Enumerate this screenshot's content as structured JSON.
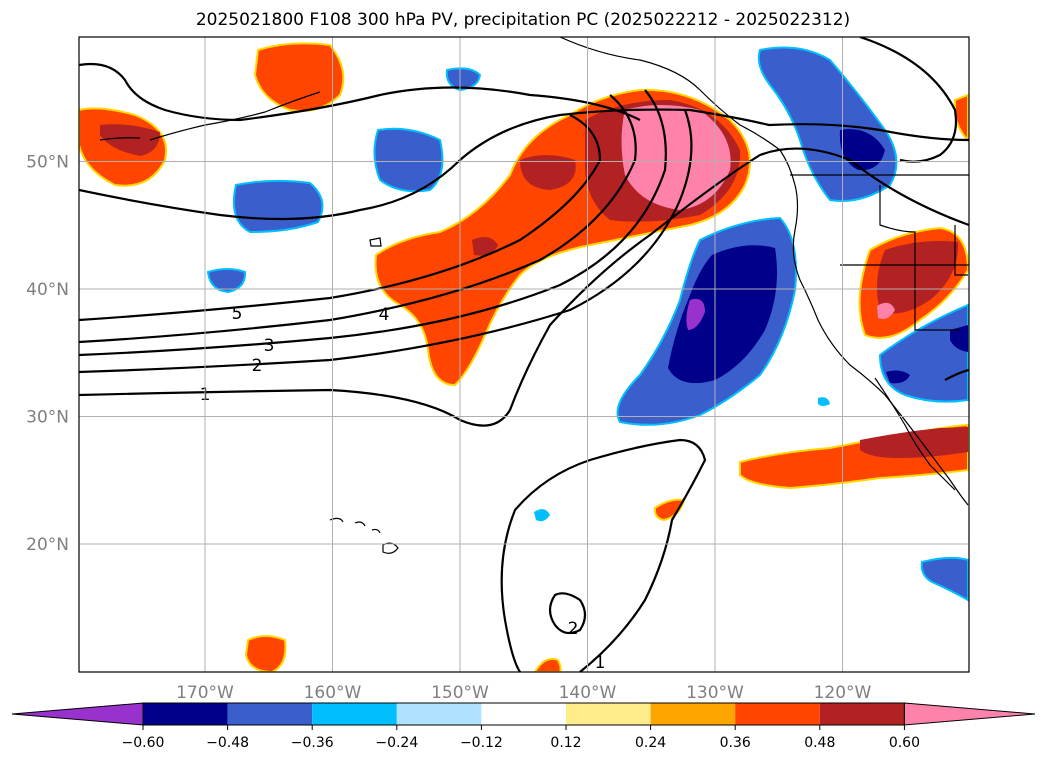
{
  "title": "2025021800 F108 300 hPa PV, precipitation PC (2025022212 - 2025022312)",
  "map": {
    "lat_labels": [
      {
        "text": "50°N",
        "lat": 50
      },
      {
        "text": "40°N",
        "lat": 40
      },
      {
        "text": "30°N",
        "lat": 30
      },
      {
        "text": "20°N",
        "lat": 20
      }
    ],
    "lon_labels": [
      {
        "text": "170°W",
        "lon": -170
      },
      {
        "text": "160°W",
        "lon": -160
      },
      {
        "text": "150°W",
        "lon": -150
      },
      {
        "text": "140°W",
        "lon": -140
      },
      {
        "text": "130°W",
        "lon": -130
      },
      {
        "text": "120°W",
        "lon": -120
      }
    ],
    "pv_contour_labels": [
      "5",
      "4",
      "3",
      "2",
      "1",
      "2",
      "1"
    ],
    "grid": true
  },
  "colorbar": {
    "tick_labels": [
      "−0.60",
      "−0.48",
      "−0.36",
      "−0.24",
      "−0.12",
      "0.12",
      "0.24",
      "0.36",
      "0.48",
      "0.60"
    ],
    "colors": [
      "#9932cc",
      "#00008b",
      "#3a5fcd",
      "#00bfff",
      "#b0e2ff",
      "#ffffff",
      "#ffec8b",
      "#ffa500",
      "#ff4500",
      "#b22222",
      "#ff82ab"
    ],
    "extend": "both"
  }
}
